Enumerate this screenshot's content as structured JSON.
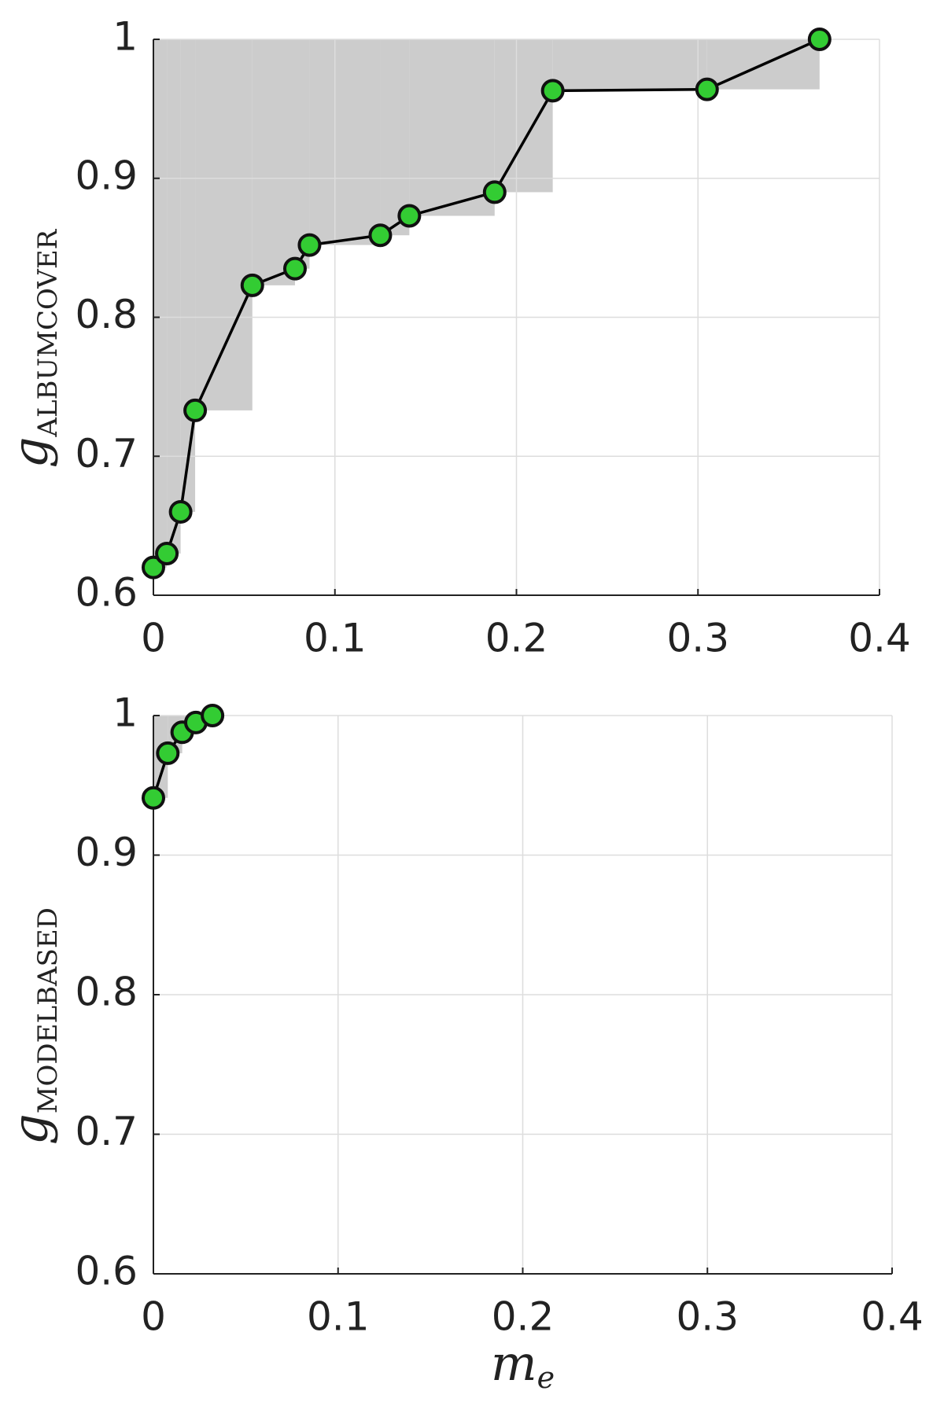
{
  "chart_data": [
    {
      "type": "line",
      "ylabel": {
        "main": "g",
        "sub": "ALBUMCOVER"
      },
      "x": [
        0,
        0.0074,
        0.015,
        0.023,
        0.0545,
        0.078,
        0.086,
        0.125,
        0.141,
        0.188,
        0.22,
        0.305,
        0.367
      ],
      "values": [
        0.62,
        0.63,
        0.66,
        0.733,
        0.823,
        0.835,
        0.852,
        0.859,
        0.873,
        0.89,
        0.963,
        0.964,
        1.0
      ],
      "color": "#33cc33",
      "line_color": "#000000",
      "area_color": "#cccccc",
      "xlim": [
        0,
        0.4
      ],
      "ylim": [
        0.6,
        1
      ],
      "xticks": [
        0,
        0.1,
        0.2,
        0.3,
        0.4
      ],
      "yticks": [
        0.6,
        0.7,
        0.8,
        0.9,
        1
      ],
      "grid": true
    },
    {
      "type": "line",
      "ylabel": {
        "main": "g",
        "sub": "MODELBASED"
      },
      "xlabel": {
        "main": "m",
        "sub": "e"
      },
      "x": [
        0,
        0.0078,
        0.0156,
        0.023,
        0.032
      ],
      "values": [
        0.941,
        0.973,
        0.988,
        0.995,
        1.0
      ],
      "color": "#33cc33",
      "line_color": "#000000",
      "area_color": "#cccccc",
      "xlim": [
        0,
        0.4
      ],
      "ylim": [
        0.6,
        1
      ],
      "xticks": [
        0,
        0.1,
        0.2,
        0.3,
        0.4
      ],
      "yticks": [
        0.6,
        0.7,
        0.8,
        0.9,
        1
      ],
      "grid": true
    }
  ]
}
